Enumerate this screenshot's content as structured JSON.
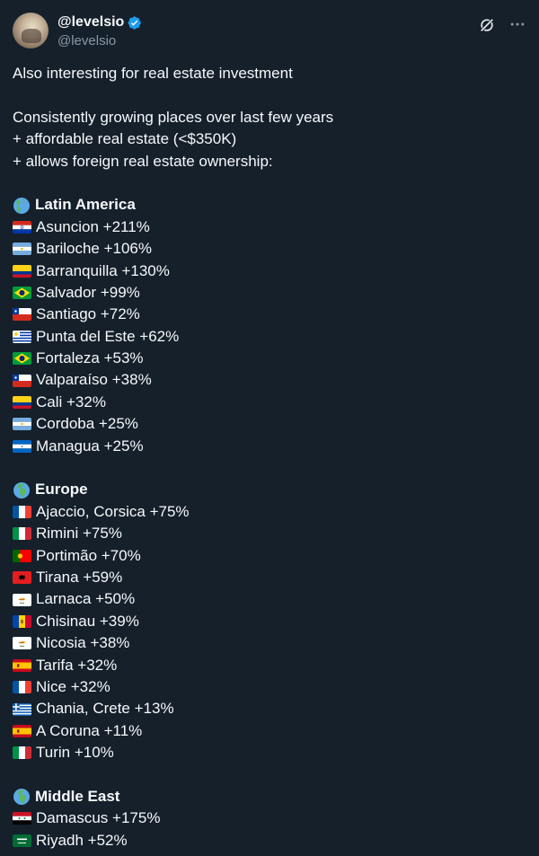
{
  "author": {
    "display_name": "@levelsio",
    "handle": "@levelsio",
    "verified": true
  },
  "actions": {
    "grok_icon": "grok-icon",
    "more_icon": "more-icon"
  },
  "tweet": {
    "intro": "Also interesting for real estate investment",
    "criteria": [
      "Consistently growing places over last few years",
      "+ affordable real estate (<$350K)",
      "+ allows foreign real estate ownership:"
    ],
    "sections": [
      {
        "title": "Latin America",
        "icon": "globe-americas-icon",
        "items": [
          {
            "text": "Asuncion +211%",
            "flag": "paraguay"
          },
          {
            "text": "Bariloche +106%",
            "flag": "argentina"
          },
          {
            "text": "Barranquilla +130%",
            "flag": "colombia"
          },
          {
            "text": "Salvador +99%",
            "flag": "brazil"
          },
          {
            "text": "Santiago +72%",
            "flag": "chile"
          },
          {
            "text": "Punta del Este +62%",
            "flag": "uruguay"
          },
          {
            "text": "Fortaleza +53%",
            "flag": "brazil"
          },
          {
            "text": "Valparaíso +38%",
            "flag": "chile"
          },
          {
            "text": "Cali +32%",
            "flag": "colombia"
          },
          {
            "text": "Cordoba +25%",
            "flag": "argentina"
          },
          {
            "text": "Managua +25%",
            "flag": "nicaragua"
          }
        ]
      },
      {
        "title": "Europe",
        "icon": "globe-europe-africa-icon",
        "items": [
          {
            "text": "Ajaccio, Corsica +75%",
            "flag": "france"
          },
          {
            "text": "Rimini +75%",
            "flag": "italy"
          },
          {
            "text": "Portimão +70%",
            "flag": "portugal"
          },
          {
            "text": "Tirana +59%",
            "flag": "albania"
          },
          {
            "text": "Larnaca +50%",
            "flag": "cyprus"
          },
          {
            "text": "Chisinau +39%",
            "flag": "moldova"
          },
          {
            "text": "Nicosia +38%",
            "flag": "cyprus"
          },
          {
            "text": "Tarifa +32%",
            "flag": "spain"
          },
          {
            "text": "Nice +32%",
            "flag": "france"
          },
          {
            "text": "Chania, Crete +13%",
            "flag": "greece"
          },
          {
            "text": "A Coruna +11%",
            "flag": "spain"
          },
          {
            "text": "Turin +10%",
            "flag": "italy"
          }
        ]
      },
      {
        "title": "Middle East",
        "icon": "globe-europe-africa-icon",
        "items": [
          {
            "text": "Damascus +175%",
            "flag": "syria"
          },
          {
            "text": "Riyadh +52%",
            "flag": "saudi-arabia"
          }
        ]
      }
    ]
  },
  "colors": {
    "background": "#15202b",
    "text": "#f7f9f9",
    "secondary_text": "#8b98a5",
    "verified_blue": "#1d9bf0"
  }
}
